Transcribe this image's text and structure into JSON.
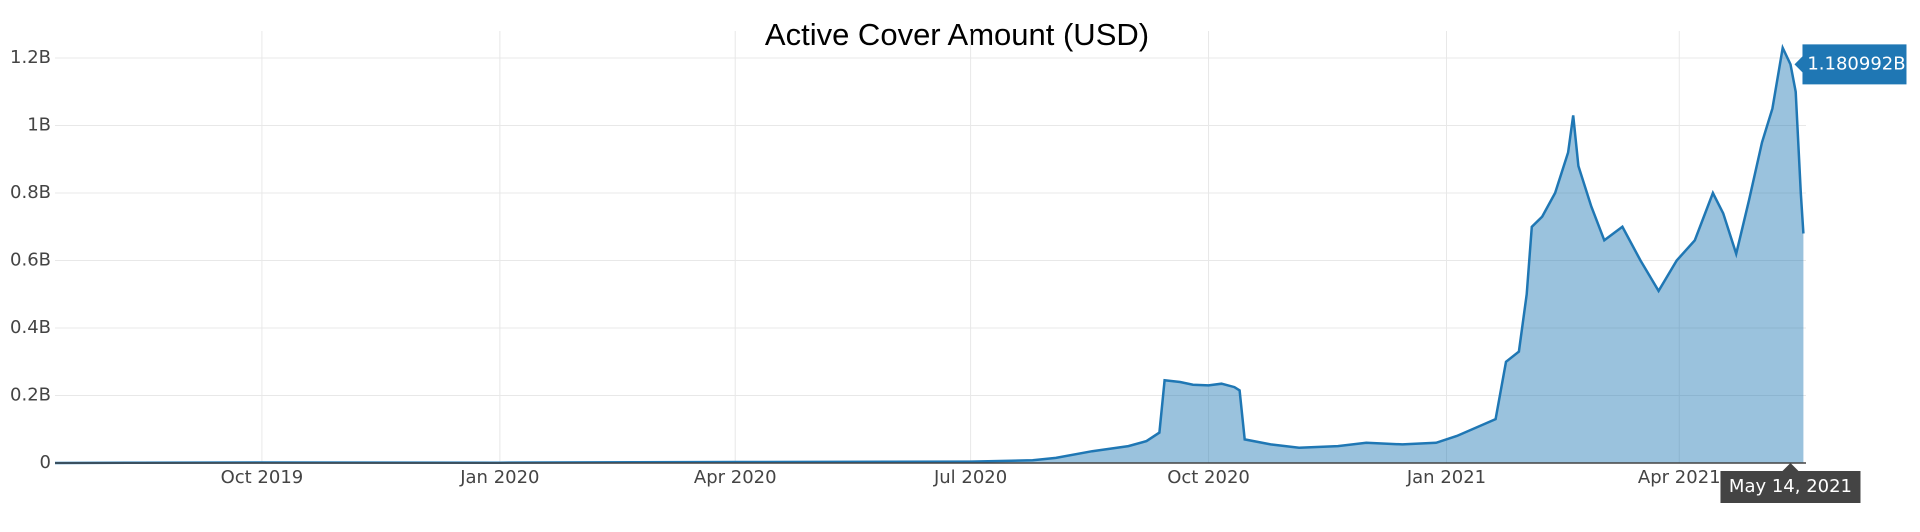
{
  "chart_data": {
    "type": "area",
    "title": "Active Cover Amount (USD)",
    "color": "#1f77b4",
    "fill": "rgba(31,119,180,0.45)",
    "grid": true,
    "x": [
      "2019-07-13",
      "2019-08-15",
      "2019-10-01",
      "2020-01-01",
      "2020-04-01",
      "2020-07-01",
      "2020-07-25",
      "2020-08-03",
      "2020-08-17",
      "2020-08-31",
      "2020-09-07",
      "2020-09-12",
      "2020-09-14",
      "2020-09-20",
      "2020-09-25",
      "2020-10-01",
      "2020-10-06",
      "2020-10-11",
      "2020-10-13",
      "2020-10-15",
      "2020-10-25",
      "2020-11-05",
      "2020-11-20",
      "2020-12-01",
      "2020-12-15",
      "2020-12-28",
      "2021-01-05",
      "2021-01-14",
      "2021-01-20",
      "2021-01-24",
      "2021-01-29",
      "2021-02-01",
      "2021-02-03",
      "2021-02-07",
      "2021-02-12",
      "2021-02-17",
      "2021-02-19",
      "2021-02-21",
      "2021-02-26",
      "2021-03-03",
      "2021-03-10",
      "2021-03-17",
      "2021-03-24",
      "2021-03-31",
      "2021-04-07",
      "2021-04-14",
      "2021-04-18",
      "2021-04-23",
      "2021-04-28",
      "2021-05-03",
      "2021-05-07",
      "2021-05-11",
      "2021-05-14",
      "2021-05-16",
      "2021-05-18",
      "2021-05-19"
    ],
    "series": [
      {
        "values": [
          0,
          1000000,
          1500000,
          1000000,
          3000000,
          4000000,
          8000000,
          15000000,
          35000000,
          50000000,
          65000000,
          90000000,
          245000000,
          240000000,
          232000000,
          230000000,
          235000000,
          225000000,
          215000000,
          70000000,
          55000000,
          45000000,
          50000000,
          60000000,
          55000000,
          60000000,
          80000000,
          110000000,
          130000000,
          300000000,
          330000000,
          500000000,
          700000000,
          730000000,
          800000000,
          920000000,
          1030000000,
          880000000,
          760000000,
          660000000,
          700000000,
          600000000,
          510000000,
          600000000,
          660000000,
          800000000,
          740000000,
          620000000,
          780000000,
          950000000,
          1050000000,
          1230000000,
          1180992000,
          1100000000,
          800000000,
          680000000
        ]
      }
    ],
    "xlim": [
      "2019-07-13",
      "2021-05-20"
    ],
    "xticks": [
      {
        "value": "2019-10-01",
        "label": "Oct 2019"
      },
      {
        "value": "2020-01-01",
        "label": "Jan 2020"
      },
      {
        "value": "2020-04-01",
        "label": "Apr 2020"
      },
      {
        "value": "2020-07-01",
        "label": "Jul 2020"
      },
      {
        "value": "2020-10-01",
        "label": "Oct 2020"
      },
      {
        "value": "2021-01-01",
        "label": "Jan 2021"
      },
      {
        "value": "2021-04-01",
        "label": "Apr 2021"
      }
    ],
    "ylim": [
      0,
      1280000000
    ],
    "yticks": [
      0,
      {
        "value": 200000000,
        "label": "0.2B"
      },
      {
        "value": 400000000,
        "label": "0.4B"
      },
      {
        "value": 600000000,
        "label": "0.6B"
      },
      {
        "value": 800000000,
        "label": "0.8B"
      },
      {
        "value": 1000000000,
        "label": "1B"
      },
      {
        "value": 1200000000,
        "label": "1.2B"
      }
    ],
    "hover": {
      "x": "2021-05-14",
      "x_label": "May 14, 2021",
      "value": 1180992000,
      "label": "1.180992B"
    }
  }
}
